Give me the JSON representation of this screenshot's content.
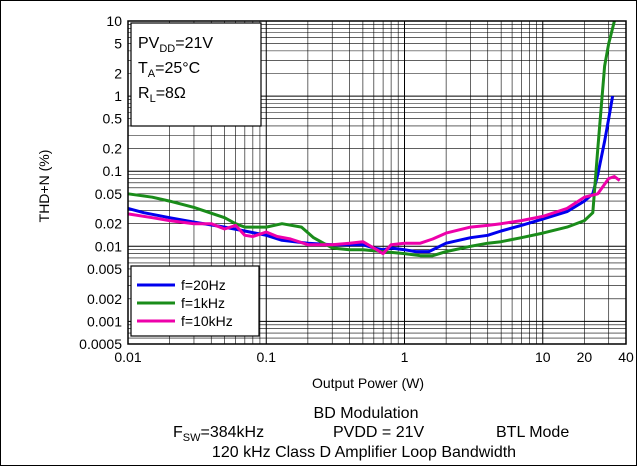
{
  "chart_data": {
    "type": "line",
    "xlabel": "Output Power (W)",
    "ylabel": "THD+N (%)",
    "x_scale": "log",
    "y_scale": "log",
    "xlim": [
      0.01,
      40
    ],
    "ylim": [
      0.0005,
      10
    ],
    "x_ticks": [
      {
        "v": 0.01,
        "label": "0.01"
      },
      {
        "v": 0.1,
        "label": "0.1"
      },
      {
        "v": 1,
        "label": "1"
      },
      {
        "v": 10,
        "label": "10"
      },
      {
        "v": 20,
        "label": "20"
      },
      {
        "v": 40,
        "label": "40"
      }
    ],
    "y_ticks": [
      {
        "v": 10,
        "label": "10"
      },
      {
        "v": 5,
        "label": "5"
      },
      {
        "v": 2,
        "label": "2"
      },
      {
        "v": 1,
        "label": "1"
      },
      {
        "v": 0.5,
        "label": "0.5"
      },
      {
        "v": 0.2,
        "label": "0.2"
      },
      {
        "v": 0.1,
        "label": "0.1"
      },
      {
        "v": 0.05,
        "label": "0.05"
      },
      {
        "v": 0.02,
        "label": "0.02"
      },
      {
        "v": 0.01,
        "label": "0.01"
      },
      {
        "v": 0.005,
        "label": "0.005"
      },
      {
        "v": 0.002,
        "label": "0.002"
      },
      {
        "v": 0.001,
        "label": "0.001"
      },
      {
        "v": 0.0005,
        "label": "0.0005"
      }
    ],
    "grid": true,
    "legend_position": "bottom-left",
    "conditions": {
      "pvdd_main": "PV",
      "pvdd_sub": "DD",
      "pvdd_value": "=21V",
      "ta_main": "T",
      "ta_sub": "A",
      "ta_value": "=25°C",
      "rl_main": "R",
      "rl_sub": "L",
      "rl_value": "=8Ω"
    },
    "series": [
      {
        "name": "f=20Hz",
        "color": "#0000ee",
        "points": [
          [
            0.01,
            0.032
          ],
          [
            0.013,
            0.028
          ],
          [
            0.02,
            0.024
          ],
          [
            0.03,
            0.021
          ],
          [
            0.05,
            0.018
          ],
          [
            0.07,
            0.016
          ],
          [
            0.1,
            0.014
          ],
          [
            0.13,
            0.012
          ],
          [
            0.2,
            0.011
          ],
          [
            0.3,
            0.0105
          ],
          [
            0.4,
            0.0105
          ],
          [
            0.5,
            0.0105
          ],
          [
            0.6,
            0.0095
          ],
          [
            0.7,
            0.009
          ],
          [
            0.8,
            0.0095
          ],
          [
            1,
            0.009
          ],
          [
            1.2,
            0.0085
          ],
          [
            1.5,
            0.0085
          ],
          [
            2,
            0.011
          ],
          [
            3,
            0.013
          ],
          [
            4,
            0.014
          ],
          [
            5,
            0.016
          ],
          [
            7,
            0.019
          ],
          [
            10,
            0.023
          ],
          [
            15,
            0.029
          ],
          [
            20,
            0.04
          ],
          [
            23,
            0.05
          ],
          [
            25,
            0.09
          ],
          [
            28,
            0.25
          ],
          [
            30,
            0.5
          ],
          [
            32,
            1.0
          ]
        ]
      },
      {
        "name": "f=1kHz",
        "color": "#1a8c1a",
        "points": [
          [
            0.01,
            0.05
          ],
          [
            0.015,
            0.045
          ],
          [
            0.02,
            0.04
          ],
          [
            0.03,
            0.033
          ],
          [
            0.05,
            0.024
          ],
          [
            0.06,
            0.02
          ],
          [
            0.07,
            0.018
          ],
          [
            0.1,
            0.018
          ],
          [
            0.13,
            0.02
          ],
          [
            0.18,
            0.018
          ],
          [
            0.22,
            0.013
          ],
          [
            0.3,
            0.0095
          ],
          [
            0.4,
            0.009
          ],
          [
            0.5,
            0.009
          ],
          [
            0.7,
            0.0085
          ],
          [
            1,
            0.008
          ],
          [
            1.3,
            0.0075
          ],
          [
            1.6,
            0.0075
          ],
          [
            2,
            0.0085
          ],
          [
            3,
            0.01
          ],
          [
            4,
            0.011
          ],
          [
            5,
            0.0115
          ],
          [
            7,
            0.013
          ],
          [
            10,
            0.015
          ],
          [
            15,
            0.018
          ],
          [
            20,
            0.022
          ],
          [
            23,
            0.028
          ],
          [
            25,
            0.2
          ],
          [
            28,
            2.5
          ],
          [
            30,
            5
          ],
          [
            33,
            10
          ]
        ]
      },
      {
        "name": "f=10kHz",
        "color": "#ee00aa",
        "points": [
          [
            0.01,
            0.027
          ],
          [
            0.015,
            0.024
          ],
          [
            0.02,
            0.022
          ],
          [
            0.03,
            0.02
          ],
          [
            0.04,
            0.02
          ],
          [
            0.05,
            0.017
          ],
          [
            0.06,
            0.019
          ],
          [
            0.07,
            0.014
          ],
          [
            0.08,
            0.0135
          ],
          [
            0.1,
            0.0155
          ],
          [
            0.12,
            0.0135
          ],
          [
            0.15,
            0.0125
          ],
          [
            0.2,
            0.0105
          ],
          [
            0.3,
            0.0105
          ],
          [
            0.4,
            0.011
          ],
          [
            0.5,
            0.0115
          ],
          [
            0.6,
            0.0095
          ],
          [
            0.7,
            0.008
          ],
          [
            0.8,
            0.0105
          ],
          [
            1,
            0.011
          ],
          [
            1.3,
            0.011
          ],
          [
            1.6,
            0.0125
          ],
          [
            2,
            0.015
          ],
          [
            3,
            0.018
          ],
          [
            4,
            0.019
          ],
          [
            5,
            0.02
          ],
          [
            7,
            0.022
          ],
          [
            10,
            0.025
          ],
          [
            15,
            0.032
          ],
          [
            20,
            0.045
          ],
          [
            25,
            0.05
          ],
          [
            30,
            0.08
          ],
          [
            33,
            0.085
          ],
          [
            36,
            0.075
          ]
        ]
      }
    ]
  },
  "caption": {
    "line1": "BD Modulation",
    "fsw_main": "F",
    "fsw_sub": "SW",
    "fsw_value": "=384kHz",
    "pvdd": "PVDD = 21V",
    "mode": "BTL Mode",
    "line3": "120 kHz Class D Amplifier Loop Bandwidth"
  }
}
